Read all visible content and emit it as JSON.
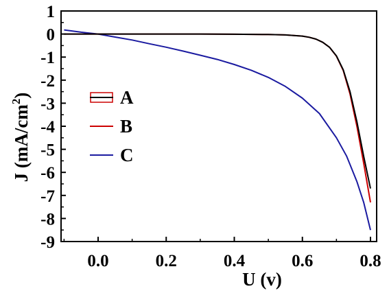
{
  "chart_data": {
    "type": "line",
    "xlabel": "U (v)",
    "ylabel": "J (mA/cm²)",
    "ylabel_parts": {
      "main": "J (mA/cm",
      "sup": "2",
      "tail": ")"
    },
    "xlim": [
      -0.1,
      0.81
    ],
    "ylim": [
      -9,
      1
    ],
    "x_ticks": [
      0.0,
      0.2,
      0.4,
      0.6,
      0.8
    ],
    "x_tick_labels": [
      "0.0",
      "0.2",
      "0.4",
      "0.6",
      "0.8"
    ],
    "y_ticks": [
      1,
      0,
      -1,
      -2,
      -3,
      -4,
      -5,
      -6,
      -7,
      -8,
      -9
    ],
    "y_tick_labels": [
      "1",
      "0",
      "-1",
      "-2",
      "-3",
      "-4",
      "-5",
      "-6",
      "-7",
      "-8",
      "-9"
    ],
    "grid": false,
    "legend_position": "middle-left",
    "series": [
      {
        "name": "A",
        "color": "#000000",
        "x": [
          -0.1,
          0.0,
          0.1,
          0.2,
          0.3,
          0.4,
          0.5,
          0.55,
          0.6,
          0.62,
          0.64,
          0.66,
          0.68,
          0.7,
          0.72,
          0.74,
          0.76,
          0.78,
          0.8
        ],
        "y": [
          0.0,
          0.0,
          0.0,
          0.0,
          0.0,
          -0.01,
          -0.02,
          -0.04,
          -0.09,
          -0.14,
          -0.22,
          -0.36,
          -0.58,
          -0.95,
          -1.55,
          -2.5,
          -3.8,
          -5.3,
          -6.7
        ]
      },
      {
        "name": "B",
        "color": "#cc0000",
        "x": [
          -0.1,
          0.0,
          0.1,
          0.2,
          0.3,
          0.4,
          0.5,
          0.55,
          0.6,
          0.62,
          0.64,
          0.66,
          0.68,
          0.7,
          0.72,
          0.74,
          0.76,
          0.78,
          0.8
        ],
        "y": [
          0.0,
          0.0,
          0.0,
          0.0,
          0.0,
          -0.01,
          -0.02,
          -0.04,
          -0.09,
          -0.14,
          -0.22,
          -0.36,
          -0.58,
          -0.96,
          -1.58,
          -2.6,
          -4.0,
          -5.6,
          -7.3
        ]
      },
      {
        "name": "C",
        "color": "#1a1aa0",
        "x": [
          -0.1,
          -0.05,
          0.0,
          0.05,
          0.1,
          0.15,
          0.2,
          0.25,
          0.3,
          0.35,
          0.4,
          0.45,
          0.5,
          0.55,
          0.6,
          0.65,
          0.7,
          0.73,
          0.76,
          0.78,
          0.8
        ],
        "y": [
          0.18,
          0.08,
          0.0,
          -0.13,
          -0.26,
          -0.42,
          -0.57,
          -0.74,
          -0.92,
          -1.1,
          -1.32,
          -1.57,
          -1.88,
          -2.27,
          -2.78,
          -3.45,
          -4.5,
          -5.3,
          -6.4,
          -7.3,
          -8.5
        ]
      }
    ]
  }
}
